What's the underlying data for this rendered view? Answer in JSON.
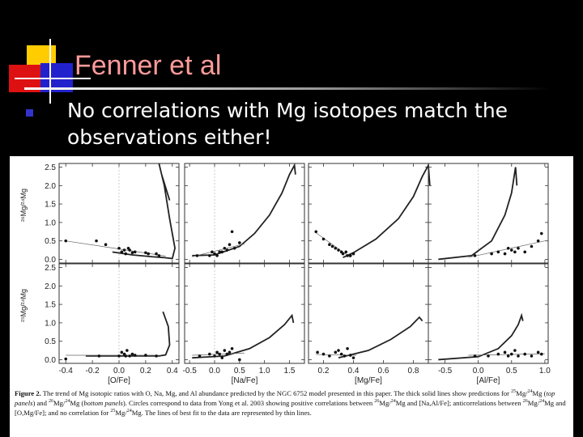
{
  "slide": {
    "title": "Fenner et al",
    "bullet": "No correlations with Mg isotopes match the observations either!"
  },
  "colors": {
    "title": "#ff9a9a",
    "bullet_marker": "#3333cc",
    "deco_yellow": "#ffcc00",
    "deco_red": "#dd1111",
    "deco_blue": "#2222cc"
  },
  "figure": {
    "caption_label": "Figure 2.",
    "caption_p1": "The trend of Mg isotopic ratios with O, Na, Mg, and Al abundance predicted by the NGC 6752 model presented in this paper. The thick solid lines show predictions for",
    "iso25": "25",
    "iso24": "24",
    "iso26": "26",
    "mg": "Mg",
    "sl": "/",
    "top_panels": "top panels",
    "bottom_panels": "bottom panels",
    "and": "and",
    "caption_p2": "Circles correspond to data from Yong et al. 2003 showing positive correlations between",
    "caption_p3": "and [Na,Al/Fe]; anticorrelations between",
    "caption_p4": "and [O,Mg/Fe]; and no correlation for",
    "caption_p5": "The lines of best fit to the data are represented by thin lines."
  },
  "chart_data": {
    "type": "scatter",
    "rows": [
      {
        "ylabel": "²⁶Mg/²⁴Mg",
        "ylim": [
          -0.1,
          2.6
        ],
        "yticks": [
          "0.0",
          "0.5",
          "1.0",
          "1.5",
          "2.0",
          "2.5"
        ]
      },
      {
        "ylabel": "²⁵Mg/²⁴Mg",
        "ylim": [
          -0.1,
          2.6
        ],
        "yticks": [
          "0.0",
          "0.5",
          "1.0",
          "1.5",
          "2.0",
          "2.5"
        ]
      }
    ],
    "columns": [
      {
        "xlabel": "[O/Fe]",
        "xlim": [
          -0.45,
          0.45
        ],
        "xticks": [
          "-0.4",
          "-0.2",
          "0.0",
          "0.2",
          "0.4"
        ]
      },
      {
        "xlabel": "[Na/Fe]",
        "xlim": [
          -0.6,
          1.8
        ],
        "xticks": [
          "-0.5",
          "0.0",
          "0.5",
          "1.0",
          "1.5"
        ]
      },
      {
        "xlabel": "[Mg/Fe]",
        "xlim": [
          0.1,
          0.9
        ],
        "xticks": [
          "0.2",
          "0.4",
          "0.6",
          "0.8"
        ]
      },
      {
        "xlabel": "[Al/Fe]",
        "xlim": [
          -0.75,
          1.05
        ],
        "xticks": [
          "-0.5",
          "0.0",
          "0.5",
          "1.0"
        ]
      }
    ],
    "panels": [
      {
        "row": 0,
        "col": 0,
        "model": [
          [
            -0.05,
            0.2
          ],
          [
            0.1,
            0.12
          ],
          [
            0.25,
            0.07
          ],
          [
            0.33,
            0.05
          ],
          [
            0.4,
            0.02
          ],
          [
            0.42,
            0.3
          ],
          [
            0.38,
            1.1
          ],
          [
            0.34,
            2.0
          ],
          [
            0.3,
            2.6
          ],
          [
            0.32,
            2.3
          ],
          [
            0.38,
            1.6
          ]
        ],
        "fit": [
          [
            -0.4,
            0.5
          ],
          [
            0.35,
            0.09
          ]
        ],
        "points": [
          [
            -0.4,
            0.5
          ],
          [
            -0.17,
            0.5
          ],
          [
            -0.1,
            0.4
          ],
          [
            0.0,
            0.3
          ],
          [
            0.02,
            0.2
          ],
          [
            0.04,
            0.25
          ],
          [
            0.05,
            0.15
          ],
          [
            0.07,
            0.3
          ],
          [
            0.08,
            0.25
          ],
          [
            0.1,
            0.18
          ],
          [
            0.12,
            0.2
          ],
          [
            0.2,
            0.18
          ],
          [
            0.22,
            0.15
          ],
          [
            0.28,
            0.15
          ],
          [
            0.3,
            0.1
          ]
        ]
      },
      {
        "row": 0,
        "col": 1,
        "model": [
          [
            -0.45,
            0.1
          ],
          [
            0.0,
            0.12
          ],
          [
            0.5,
            0.35
          ],
          [
            0.8,
            0.7
          ],
          [
            1.1,
            1.2
          ],
          [
            1.35,
            1.8
          ],
          [
            1.5,
            2.3
          ],
          [
            1.6,
            2.55
          ],
          [
            1.62,
            2.3
          ]
        ],
        "fit": [
          [
            -0.45,
            0.07
          ],
          [
            0.6,
            0.42
          ]
        ],
        "points": [
          [
            -0.35,
            0.1
          ],
          [
            -0.1,
            0.1
          ],
          [
            -0.05,
            0.2
          ],
          [
            0.0,
            0.15
          ],
          [
            0.05,
            0.1
          ],
          [
            0.1,
            0.2
          ],
          [
            0.15,
            0.2
          ],
          [
            0.2,
            0.3
          ],
          [
            0.25,
            0.25
          ],
          [
            0.3,
            0.4
          ],
          [
            0.35,
            0.75
          ],
          [
            0.4,
            0.3
          ],
          [
            0.5,
            0.45
          ]
        ]
      },
      {
        "row": 0,
        "col": 2,
        "model": [
          [
            0.33,
            0.05
          ],
          [
            0.4,
            0.18
          ],
          [
            0.55,
            0.55
          ],
          [
            0.7,
            1.1
          ],
          [
            0.8,
            1.7
          ],
          [
            0.86,
            2.25
          ],
          [
            0.9,
            2.55
          ],
          [
            0.91,
            2.0
          ]
        ],
        "fit": [
          [
            0.15,
            0.72
          ],
          [
            0.38,
            0.05
          ]
        ],
        "points": [
          [
            0.15,
            0.75
          ],
          [
            0.2,
            0.55
          ],
          [
            0.24,
            0.4
          ],
          [
            0.26,
            0.35
          ],
          [
            0.28,
            0.3
          ],
          [
            0.3,
            0.25
          ],
          [
            0.32,
            0.2
          ],
          [
            0.33,
            0.15
          ],
          [
            0.35,
            0.2
          ],
          [
            0.36,
            0.1
          ],
          [
            0.38,
            0.1
          ],
          [
            0.4,
            0.15
          ]
        ]
      },
      {
        "row": 0,
        "col": 3,
        "model": [
          [
            -0.6,
            0.0
          ],
          [
            -0.1,
            0.1
          ],
          [
            0.2,
            0.5
          ],
          [
            0.4,
            1.2
          ],
          [
            0.5,
            1.8
          ],
          [
            0.56,
            2.5
          ],
          [
            0.58,
            2.0
          ]
        ],
        "fit": [
          [
            -0.15,
            0.05
          ],
          [
            1.0,
            0.5
          ]
        ],
        "points": [
          [
            -0.05,
            0.1
          ],
          [
            0.2,
            0.15
          ],
          [
            0.3,
            0.2
          ],
          [
            0.4,
            0.15
          ],
          [
            0.45,
            0.3
          ],
          [
            0.5,
            0.25
          ],
          [
            0.55,
            0.2
          ],
          [
            0.6,
            0.3
          ],
          [
            0.7,
            0.2
          ],
          [
            0.8,
            0.35
          ],
          [
            0.9,
            0.5
          ],
          [
            0.95,
            0.7
          ]
        ]
      },
      {
        "row": 1,
        "col": 0,
        "model": [
          [
            -0.25,
            0.1
          ],
          [
            0.0,
            0.1
          ],
          [
            0.2,
            0.1
          ],
          [
            0.3,
            0.1
          ],
          [
            0.35,
            0.13
          ],
          [
            0.38,
            0.4
          ],
          [
            0.37,
            0.9
          ],
          [
            0.33,
            1.3
          ]
        ],
        "fit": [
          [
            -0.4,
            0.12
          ],
          [
            0.3,
            0.12
          ]
        ],
        "points": [
          [
            -0.4,
            0.02
          ],
          [
            -0.15,
            0.1
          ],
          [
            0.0,
            0.1
          ],
          [
            0.02,
            0.2
          ],
          [
            0.04,
            0.15
          ],
          [
            0.05,
            0.1
          ],
          [
            0.06,
            0.25
          ],
          [
            0.08,
            0.1
          ],
          [
            0.1,
            0.15
          ],
          [
            0.12,
            0.12
          ],
          [
            0.2,
            0.12
          ],
          [
            0.28,
            0.1
          ]
        ]
      },
      {
        "row": 1,
        "col": 1,
        "model": [
          [
            -0.45,
            0.05
          ],
          [
            0.2,
            0.1
          ],
          [
            0.7,
            0.3
          ],
          [
            1.1,
            0.6
          ],
          [
            1.4,
            0.95
          ],
          [
            1.55,
            1.2
          ],
          [
            1.58,
            1.0
          ]
        ],
        "fit": [
          [
            -0.45,
            0.12
          ],
          [
            0.6,
            0.18
          ]
        ],
        "points": [
          [
            -0.3,
            0.1
          ],
          [
            -0.1,
            0.15
          ],
          [
            0.0,
            0.1
          ],
          [
            0.05,
            0.2
          ],
          [
            0.1,
            0.15
          ],
          [
            0.15,
            0.05
          ],
          [
            0.2,
            0.25
          ],
          [
            0.25,
            0.15
          ],
          [
            0.3,
            0.2
          ],
          [
            0.35,
            0.3
          ],
          [
            0.5,
            0.0
          ]
        ]
      },
      {
        "row": 1,
        "col": 2,
        "model": [
          [
            0.3,
            0.05
          ],
          [
            0.5,
            0.25
          ],
          [
            0.65,
            0.55
          ],
          [
            0.78,
            0.9
          ],
          [
            0.84,
            1.15
          ],
          [
            0.86,
            1.05
          ]
        ],
        "fit": [
          [
            0.15,
            0.14
          ],
          [
            0.42,
            0.12
          ]
        ],
        "points": [
          [
            0.16,
            0.2
          ],
          [
            0.2,
            0.15
          ],
          [
            0.24,
            0.1
          ],
          [
            0.28,
            0.2
          ],
          [
            0.3,
            0.25
          ],
          [
            0.32,
            0.15
          ],
          [
            0.34,
            0.1
          ],
          [
            0.36,
            0.3
          ],
          [
            0.38,
            0.12
          ],
          [
            0.4,
            0.05
          ]
        ]
      },
      {
        "row": 1,
        "col": 3,
        "model": [
          [
            -0.6,
            0.0
          ],
          [
            0.0,
            0.08
          ],
          [
            0.3,
            0.3
          ],
          [
            0.5,
            0.65
          ],
          [
            0.6,
            0.95
          ],
          [
            0.65,
            1.2
          ],
          [
            0.67,
            1.05
          ]
        ],
        "fit": [
          [
            -0.15,
            0.12
          ],
          [
            1.0,
            0.16
          ]
        ],
        "points": [
          [
            -0.05,
            0.1
          ],
          [
            0.15,
            0.1
          ],
          [
            0.3,
            0.15
          ],
          [
            0.4,
            0.2
          ],
          [
            0.45,
            0.1
          ],
          [
            0.5,
            0.15
          ],
          [
            0.55,
            0.25
          ],
          [
            0.6,
            0.1
          ],
          [
            0.7,
            0.15
          ],
          [
            0.8,
            0.1
          ],
          [
            0.9,
            0.2
          ],
          [
            0.95,
            0.15
          ]
        ]
      }
    ]
  }
}
